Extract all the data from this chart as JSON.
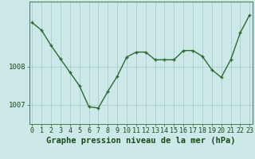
{
  "x": [
    0,
    1,
    2,
    3,
    4,
    5,
    6,
    7,
    8,
    9,
    10,
    11,
    12,
    13,
    14,
    15,
    16,
    17,
    18,
    19,
    20,
    21,
    22,
    23
  ],
  "y": [
    1009.15,
    1008.95,
    1008.55,
    1008.2,
    1007.85,
    1007.5,
    1006.95,
    1006.92,
    1007.35,
    1007.75,
    1008.25,
    1008.38,
    1008.38,
    1008.18,
    1008.18,
    1008.18,
    1008.42,
    1008.42,
    1008.27,
    1007.92,
    1007.72,
    1008.18,
    1008.88,
    1009.35
  ],
  "ylim": [
    1006.5,
    1009.7
  ],
  "yticks": [
    1007,
    1008
  ],
  "ytick_labels": [
    "1007",
    "1008"
  ],
  "xlim": [
    -0.3,
    23.3
  ],
  "xticks": [
    0,
    1,
    2,
    3,
    4,
    5,
    6,
    7,
    8,
    9,
    10,
    11,
    12,
    13,
    14,
    15,
    16,
    17,
    18,
    19,
    20,
    21,
    22,
    23
  ],
  "line_color": "#2d6b2d",
  "bg_color": "#cce8e8",
  "grid_color": "#aacccc",
  "grid_linewidth": 0.6,
  "xlabel": "Graphe pression niveau de la mer (hPa)",
  "xlabel_fontsize": 7.5,
  "xlabel_fontweight": "bold",
  "tick_fontsize": 6.0,
  "ytick_fontsize": 6.5,
  "line_width": 1.0,
  "marker_size": 2.8,
  "marker": "+"
}
